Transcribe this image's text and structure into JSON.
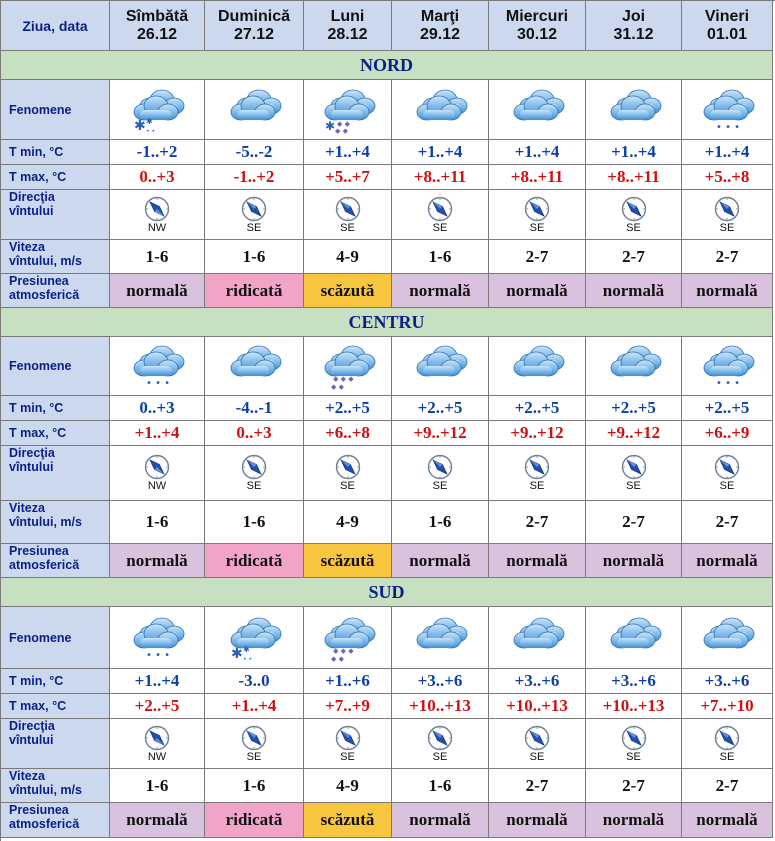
{
  "header": {
    "label": "Ziua, data",
    "days": [
      {
        "name": "Sîmbătă",
        "date": "26.12"
      },
      {
        "name": "Duminică",
        "date": "27.12"
      },
      {
        "name": "Luni",
        "date": "28.12"
      },
      {
        "name": "Marţi",
        "date": "29.12"
      },
      {
        "name": "Miercuri",
        "date": "30.12"
      },
      {
        "name": "Joi",
        "date": "31.12"
      },
      {
        "name": "Vineri",
        "date": "01.01"
      }
    ]
  },
  "row_labels": {
    "phenomena": "Fenomene",
    "tmin": "T min, °C",
    "tmax": "T max, °C",
    "wind_dir_1": "Direcţia",
    "wind_dir_2": "vîntului",
    "wind_speed_1": "Viteza",
    "wind_speed_2": "vîntului, m/s",
    "pressure_1": "Presiunea",
    "pressure_2": "atmosferică"
  },
  "regions": [
    {
      "name": "NORD",
      "phenomena": [
        "cloud-snow-heavy-icon",
        "cloud-icon",
        "cloud-snow-rain-icon",
        "cloud-icon",
        "cloud-icon",
        "cloud-icon",
        "cloud-light-snow-icon"
      ],
      "tmin": [
        "-1..+2",
        "-5..-2",
        "+1..+4",
        "+1..+4",
        "+1..+4",
        "+1..+4",
        "+1..+4"
      ],
      "tmax": [
        "0..+3",
        "-1..+2",
        "+5..+7",
        "+8..+11",
        "+8..+11",
        "+8..+11",
        "+5..+8"
      ],
      "wind_dir": [
        "NW",
        "SE",
        "SE",
        "SE",
        "SE",
        "SE",
        "SE"
      ],
      "wind_speed": [
        "1-6",
        "1-6",
        "4-9",
        "1-6",
        "2-7",
        "2-7",
        "2-7"
      ],
      "pressure": [
        "normală",
        "ridicată",
        "scăzută",
        "normală",
        "normală",
        "normală",
        "normală"
      ]
    },
    {
      "name": "CENTRU",
      "phenomena": [
        "cloud-light-snow-icon",
        "cloud-icon",
        "cloud-rain-icon",
        "cloud-icon",
        "cloud-icon",
        "cloud-icon",
        "cloud-light-snow-icon"
      ],
      "tmin": [
        "0..+3",
        "-4..-1",
        "+2..+5",
        "+2..+5",
        "+2..+5",
        "+2..+5",
        "+2..+5"
      ],
      "tmax": [
        "+1..+4",
        "0..+3",
        "+6..+8",
        "+9..+12",
        "+9..+12",
        "+9..+12",
        "+6..+9"
      ],
      "wind_dir": [
        "NW",
        "SE",
        "SE",
        "SE",
        "SE",
        "SE",
        "SE"
      ],
      "wind_speed": [
        "1-6",
        "1-6",
        "4-9",
        "1-6",
        "2-7",
        "2-7",
        "2-7"
      ],
      "pressure": [
        "normală",
        "ridicată",
        "scăzută",
        "normală",
        "normală",
        "normală",
        "normală"
      ]
    },
    {
      "name": "SUD",
      "phenomena": [
        "cloud-light-snow-icon",
        "cloud-snow-heavy-icon",
        "cloud-rain-icon",
        "cloud-icon",
        "cloud-icon",
        "cloud-icon",
        "cloud-icon"
      ],
      "tmin": [
        "+1..+4",
        "-3..0",
        "+1..+6",
        "+3..+6",
        "+3..+6",
        "+3..+6",
        "+3..+6"
      ],
      "tmax": [
        "+2..+5",
        "+1..+4",
        "+7..+9",
        "+10..+13",
        "+10..+13",
        "+10..+13",
        "+7..+10"
      ],
      "wind_dir": [
        "NW",
        "SE",
        "SE",
        "SE",
        "SE",
        "SE",
        "SE"
      ],
      "wind_speed": [
        "1-6",
        "1-6",
        "4-9",
        "1-6",
        "2-7",
        "2-7",
        "2-7"
      ],
      "pressure": [
        "normală",
        "ridicată",
        "scăzută",
        "normală",
        "normală",
        "normală",
        "normală"
      ]
    }
  ],
  "colors": {
    "header_bg": "#ccd8ee",
    "region_bg": "#c7e0c1",
    "label_text": "#0b1f8a",
    "tmin_text": "#0b3fa8",
    "tmax_text": "#d01010",
    "pressure_normala": "#d9c2de",
    "pressure_ridicata": "#f2a4c8",
    "pressure_scazuta": "#f8c53f"
  }
}
